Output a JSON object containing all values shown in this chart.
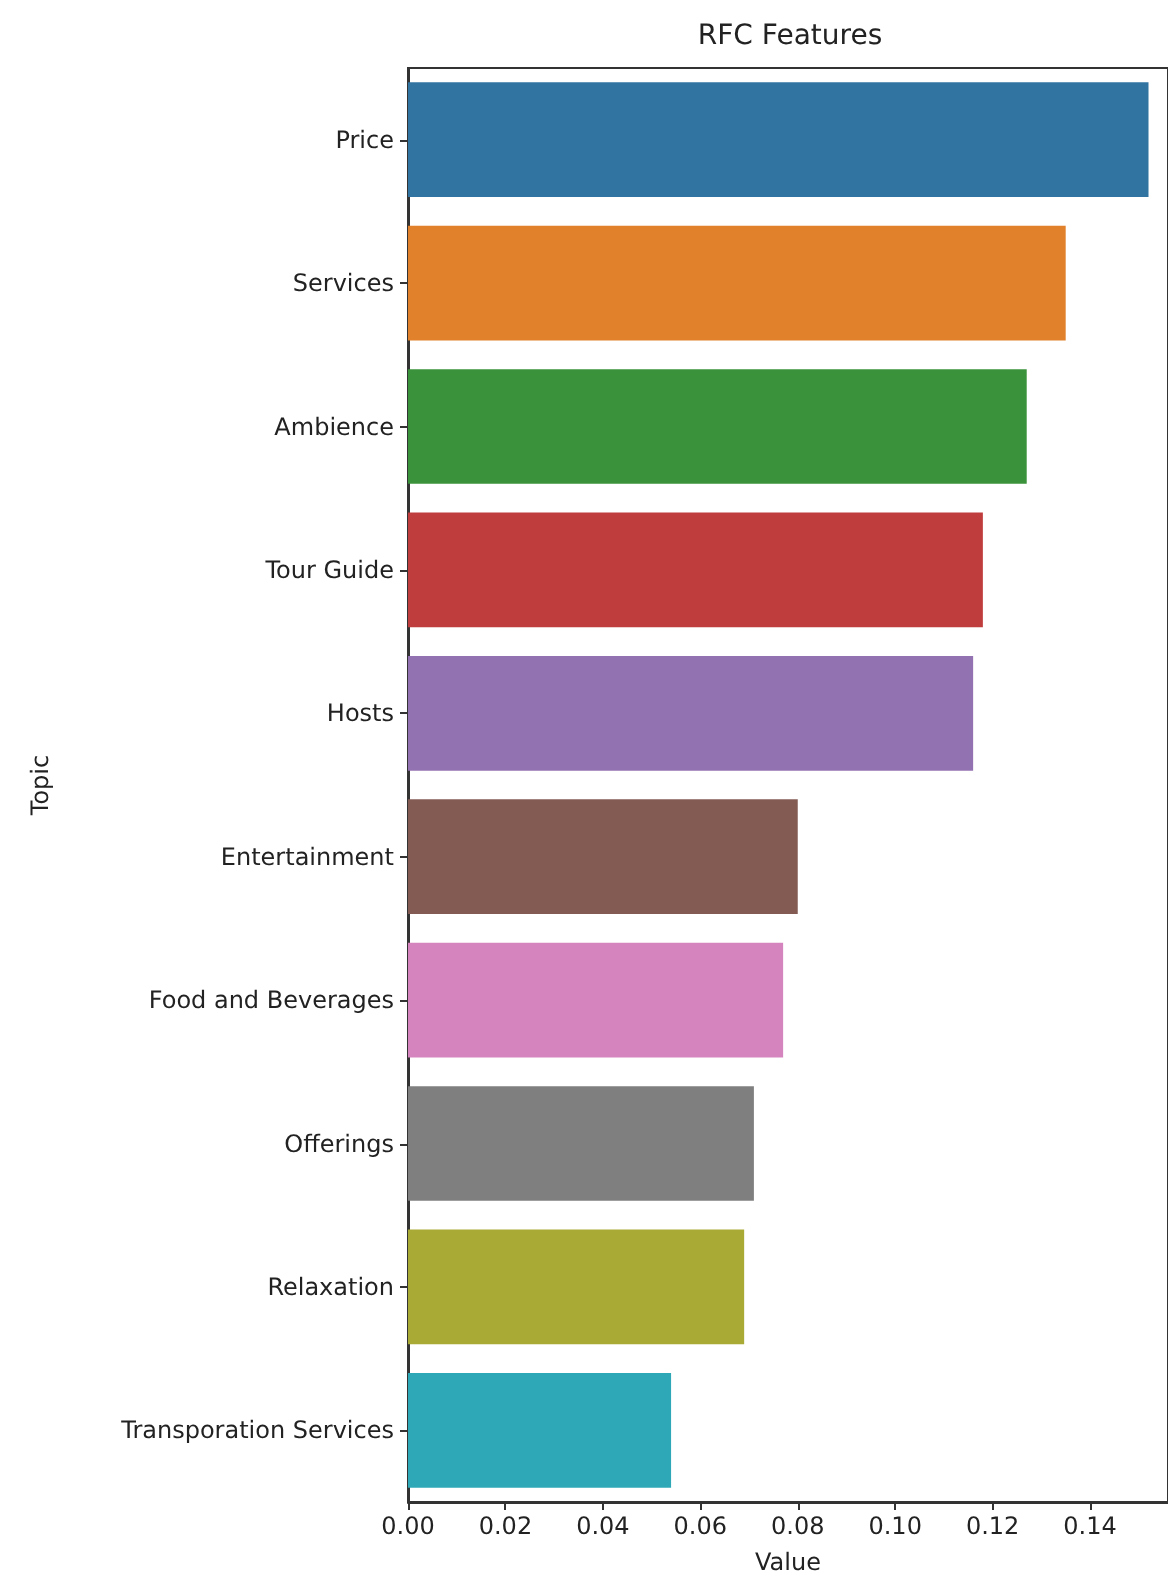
{
  "chart_data": {
    "type": "bar",
    "orientation": "horizontal",
    "title": "RFC Features",
    "xlabel": "Value",
    "ylabel": "Topic",
    "categories": [
      "Price",
      "Services",
      "Ambience",
      "Tour Guide",
      "Hosts",
      "Entertainment",
      "Food and Beverages",
      "Offerings",
      "Relaxation",
      "Transporation Services"
    ],
    "values": [
      0.152,
      0.135,
      0.127,
      0.118,
      0.116,
      0.08,
      0.077,
      0.071,
      0.069,
      0.054
    ],
    "colors": [
      "#3274a1",
      "#e1812c",
      "#3a923a",
      "#c03d3e",
      "#9372b2",
      "#845b53",
      "#d684bd",
      "#7f7f7f",
      "#a9aa35",
      "#2ea8b7"
    ],
    "xlim": [
      0,
      0.156
    ],
    "xticks": [
      {
        "value": 0,
        "label": "0.00"
      },
      {
        "value": 0.02,
        "label": "0.02"
      },
      {
        "value": 0.04,
        "label": "0.04"
      },
      {
        "value": 0.06,
        "label": "0.06"
      },
      {
        "value": 0.08,
        "label": "0.08"
      },
      {
        "value": 0.1,
        "label": "0.10"
      },
      {
        "value": 0.12,
        "label": "0.12"
      },
      {
        "value": 0.14,
        "label": "0.14"
      }
    ]
  }
}
